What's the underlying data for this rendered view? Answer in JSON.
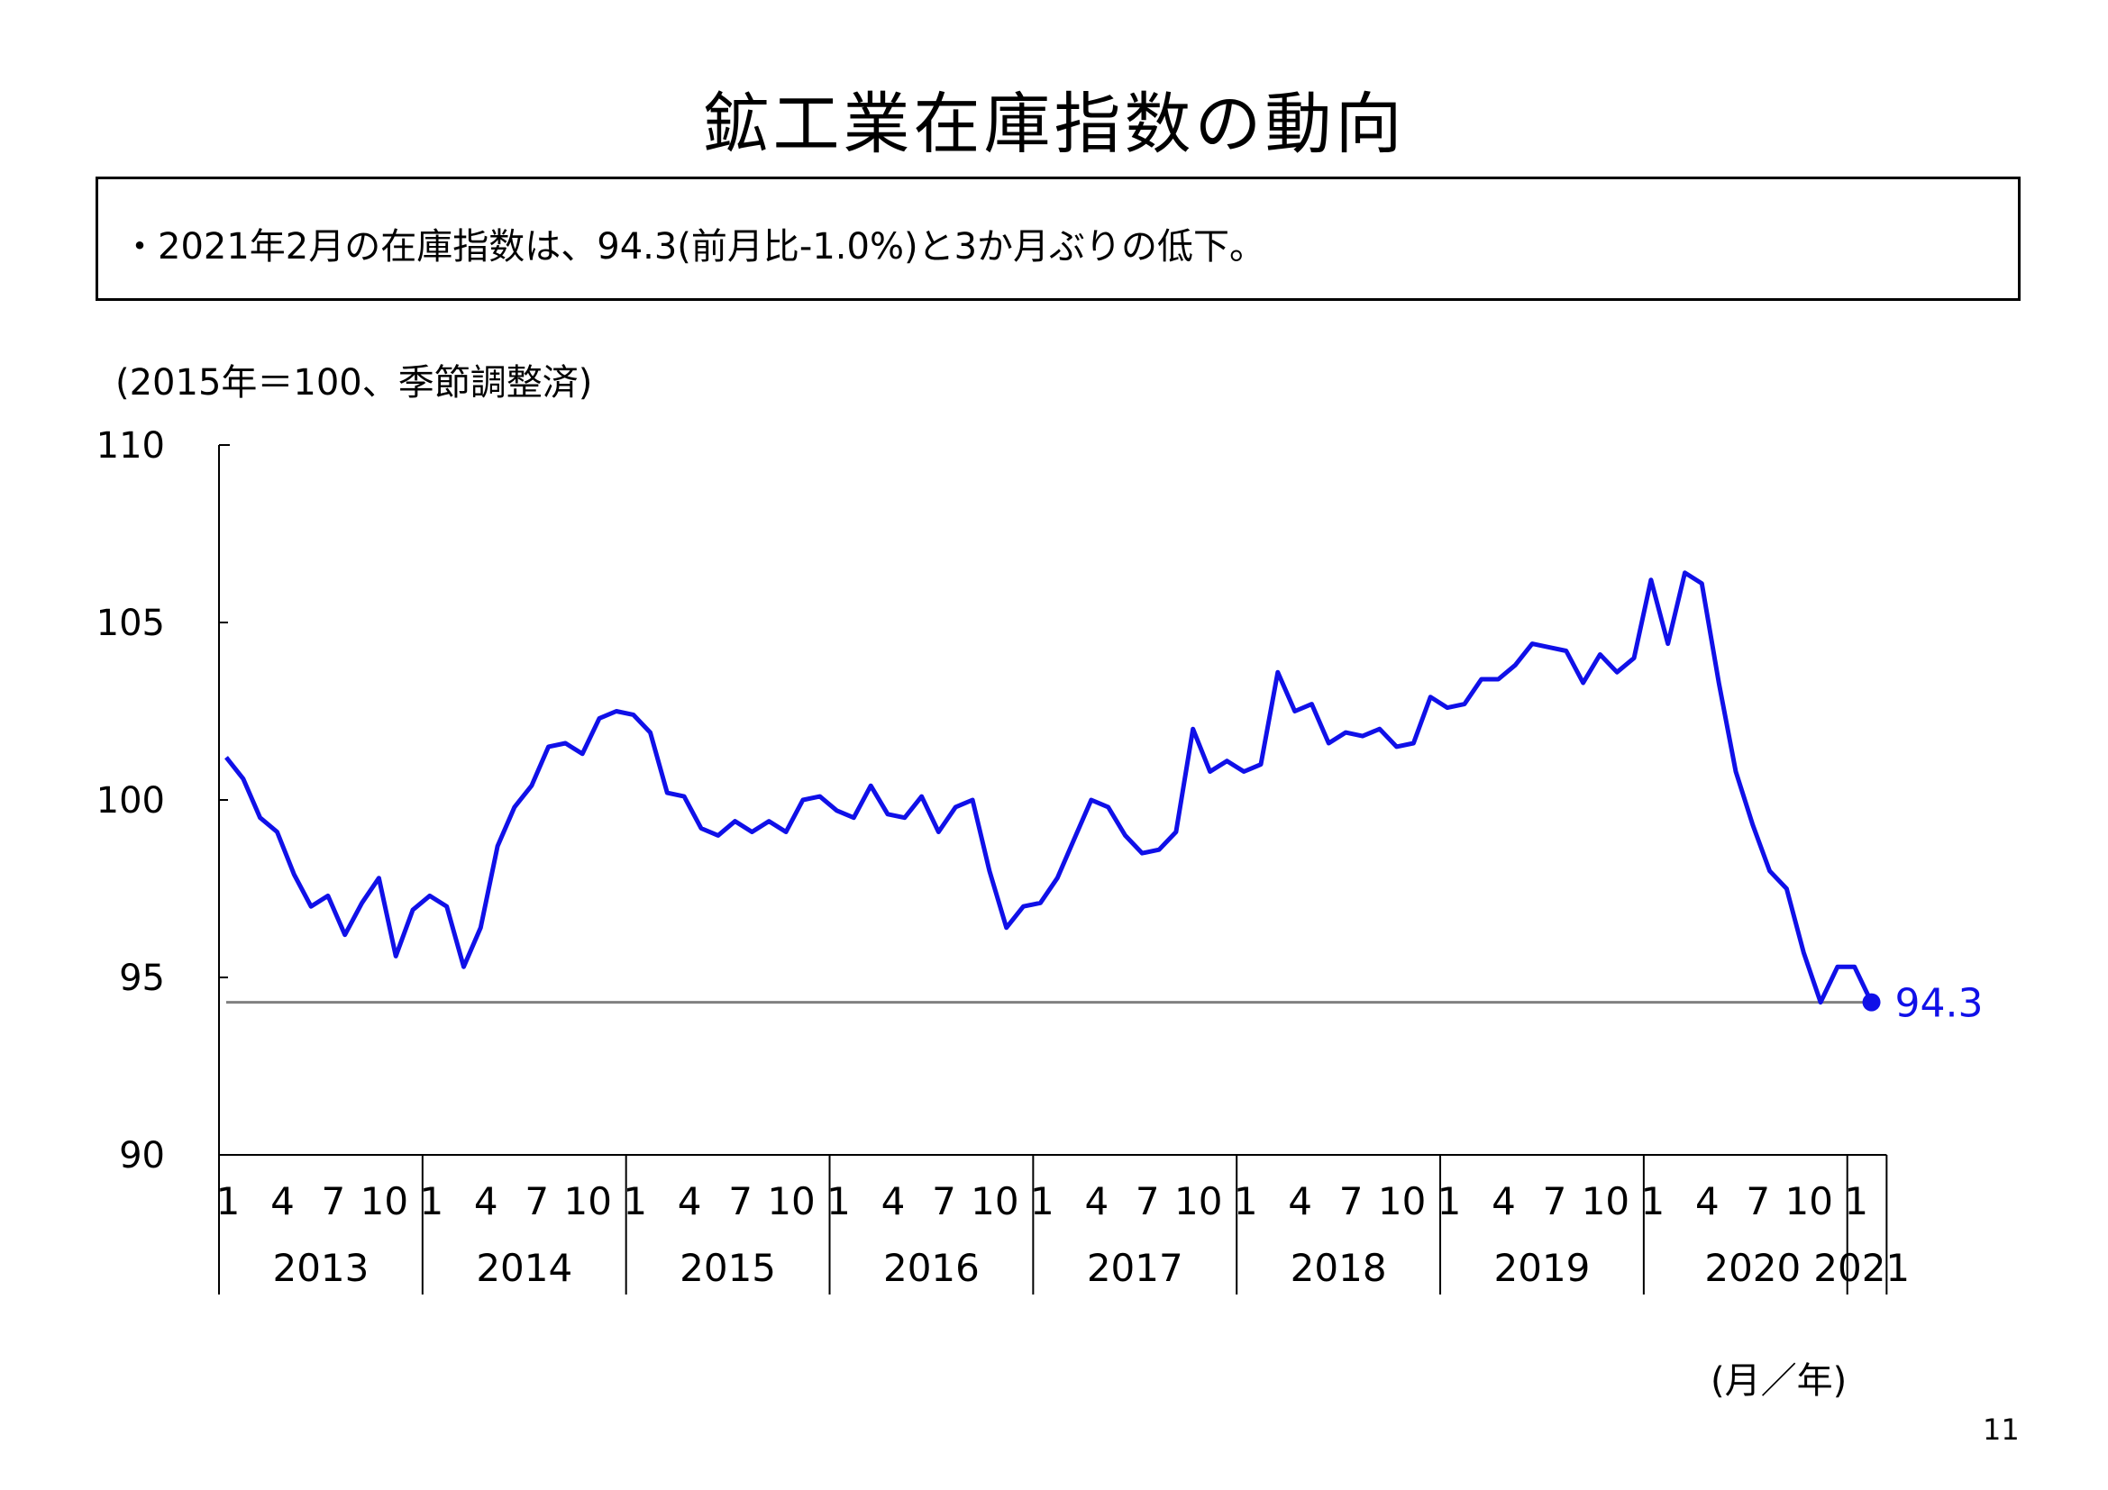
{
  "header": {
    "title": "鉱工業在庫指数の動向"
  },
  "summary": {
    "text": "・2021年2月の在庫指数は、94.3(前月比-1.0%)と3か月ぶりの低下。"
  },
  "chart_note": {
    "unit": "(2015年＝100、季節調整済)",
    "x_axis_unit": "(月／年)"
  },
  "page": {
    "number": "11"
  },
  "chart_data": {
    "type": "line",
    "title": "",
    "ylim": [
      90,
      110
    ],
    "yticks": [
      90,
      95,
      100,
      105,
      110
    ],
    "month_tick_labels": [
      "1",
      "4",
      "7",
      "10"
    ],
    "years": [
      "2013",
      "2014",
      "2015",
      "2016",
      "2017",
      "2018",
      "2019",
      "2020",
      "2021"
    ],
    "series_color": "#1010e8",
    "reference_line": {
      "value": 94.3,
      "color": "#808080"
    },
    "end_label": "94.3",
    "series": [
      {
        "values": [
          101.2,
          100.6,
          99.5,
          99.1,
          97.9,
          97.0,
          97.3,
          96.2,
          97.1,
          97.8,
          95.6,
          96.9,
          97.3,
          97.0,
          95.3,
          96.4,
          98.7,
          99.8,
          100.4,
          101.5,
          101.6,
          101.3,
          102.3,
          102.5,
          102.4,
          101.9,
          100.2,
          100.1,
          99.2,
          99.0,
          99.4,
          99.1,
          99.4,
          99.1,
          100.0,
          100.1,
          99.7,
          99.5,
          100.4,
          99.6,
          99.5,
          100.1,
          99.1,
          99.8,
          100.0,
          98.0,
          96.4,
          97.0,
          97.1,
          97.8,
          98.9,
          100.0,
          99.8,
          99.0,
          98.5,
          98.6,
          99.1,
          102.0,
          100.8,
          101.1,
          100.8,
          101.0,
          103.6,
          102.5,
          102.7,
          101.6,
          101.9,
          101.8,
          102.0,
          101.5,
          101.6,
          102.9,
          102.6,
          102.7,
          103.4,
          103.4,
          103.8,
          104.4,
          104.3,
          104.2,
          103.3,
          104.1,
          103.6,
          104.0,
          106.2,
          104.4,
          106.4,
          106.1,
          103.3,
          100.8,
          99.3,
          98.0,
          97.5,
          95.7,
          94.3,
          95.3,
          95.3,
          94.3
        ]
      }
    ]
  }
}
